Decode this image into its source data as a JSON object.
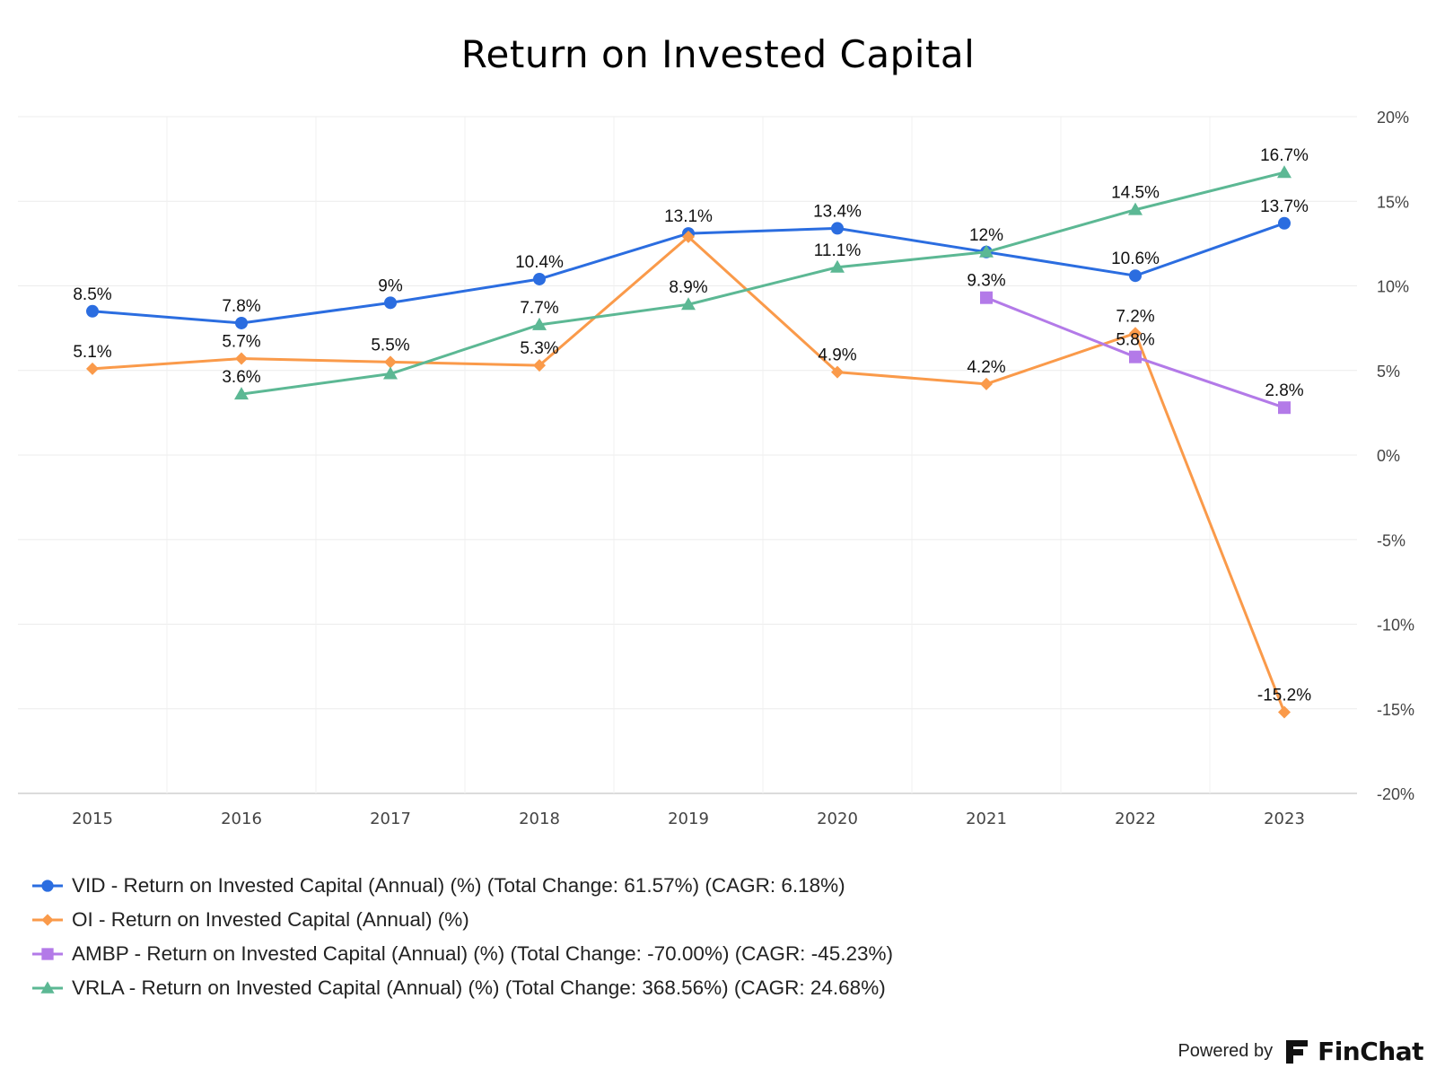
{
  "chart_data": {
    "type": "line",
    "title": "Return on Invested Capital",
    "categories": [
      "2015",
      "2016",
      "2017",
      "2018",
      "2019",
      "2020",
      "2021",
      "2022",
      "2023"
    ],
    "y_axis": {
      "position": "right",
      "ylim": [
        -20,
        20
      ],
      "ticks": [
        20,
        15,
        10,
        5,
        0,
        -5,
        -10,
        -15,
        -20
      ],
      "tick_labels": [
        "20%",
        "15%",
        "10%",
        "5%",
        "0%",
        "-5%",
        "-10%",
        "-15%",
        "-20%"
      ]
    },
    "grid": true,
    "legend_placement": "bottom-left",
    "series": [
      {
        "name": "VID - Return on Invested Capital (Annual) (%) (Total Change: 61.57%) (CAGR: 6.18%)",
        "color": "#2b6de0",
        "marker": "circle",
        "values": [
          8.5,
          7.8,
          9,
          10.4,
          13.1,
          13.4,
          12,
          10.6,
          13.7
        ],
        "labels": [
          "8.5%",
          "7.8%",
          "9%",
          "10.4%",
          "13.1%",
          "13.4%",
          "12%",
          "10.6%",
          "13.7%"
        ]
      },
      {
        "name": "OI - Return on Invested Capital (Annual) (%)",
        "color": "#fa9a4a",
        "marker": "diamond",
        "values": [
          5.1,
          5.7,
          5.5,
          5.3,
          12.9,
          4.9,
          4.2,
          7.2,
          -15.2
        ],
        "labels": [
          "5.1%",
          "5.7%",
          "5.5%",
          "5.3%",
          "",
          "4.9%",
          "4.2%",
          "7.2%",
          "-15.2%"
        ]
      },
      {
        "name": "AMBP - Return on Invested Capital (Annual) (%) (Total Change: -70.00%) (CAGR: -45.23%)",
        "color": "#b37ae8",
        "marker": "square",
        "values": [
          null,
          null,
          null,
          null,
          null,
          null,
          9.3,
          5.8,
          2.8
        ],
        "labels": [
          "",
          "",
          "",
          "",
          "",
          "",
          "9.3%",
          "5.8%",
          "2.8%"
        ]
      },
      {
        "name": "VRLA - Return on Invested Capital (Annual) (%) (Total Change: 368.56%) (CAGR: 24.68%)",
        "color": "#5cb894",
        "marker": "triangle",
        "values": [
          null,
          3.6,
          4.8,
          7.7,
          8.9,
          11.1,
          12,
          14.5,
          16.7
        ],
        "labels": [
          "",
          "3.6%",
          "",
          "7.7%",
          "8.9%",
          "11.1%",
          "",
          "14.5%",
          "16.7%"
        ]
      }
    ]
  },
  "branding": {
    "powered_by": "Powered by",
    "name": "FinChat"
  }
}
